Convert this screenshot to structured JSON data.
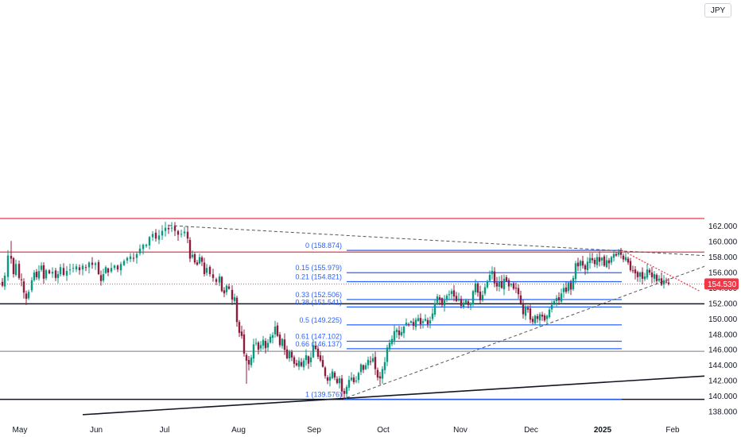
{
  "currency": "JPY",
  "colors": {
    "up": "#089981",
    "down": "#8d1c3d",
    "red_line": "#f23645",
    "fib": "#2962ff",
    "trend": "#131722",
    "price_badge": "#f23645"
  },
  "chart_data": {
    "type": "candlestick",
    "y_axis": {
      "position": "right",
      "ylim": [
        137.5,
        163.5
      ],
      "ticks": [
        "138.000",
        "140.000",
        "142.000",
        "144.000",
        "146.000",
        "148.000",
        "150.000",
        "152.000",
        "154.000",
        "156.000",
        "158.000",
        "160.000",
        "162.000"
      ]
    },
    "x_axis": {
      "labels": [
        "May",
        "Jun",
        "Jul",
        "Aug",
        "Sep",
        "Oct",
        "Nov",
        "Dec",
        "2025",
        "Feb"
      ]
    },
    "last_price": "154.530",
    "fib_levels": [
      {
        "ratio": 0,
        "label": "0 (158.874)",
        "price": 158.874
      },
      {
        "ratio": 0.15,
        "label": "0.15 (155.979)",
        "price": 155.979
      },
      {
        "ratio": 0.21,
        "label": "0.21 (154.821)",
        "price": 154.821
      },
      {
        "ratio": 0.33,
        "label": "0.33 (152.506)",
        "price": 152.506
      },
      {
        "ratio": 0.38,
        "label": "0.38 (151.541)",
        "price": 151.541
      },
      {
        "ratio": 0.5,
        "label": "0.5 (149.225)",
        "price": 149.225
      },
      {
        "ratio": 0.61,
        "label": "0.61 (147.102)",
        "price": 147.102
      },
      {
        "ratio": 0.66,
        "label": "0.66 (146.137)",
        "price": 146.137
      },
      {
        "ratio": 1,
        "label": "1 (139.576)",
        "price": 139.576
      }
    ],
    "horizontal_lines": [
      {
        "price": 163.0,
        "color": "red"
      },
      {
        "price": 158.65,
        "color": "red"
      },
      {
        "price": 151.95,
        "color": "black",
        "width": "thick"
      },
      {
        "price": 145.8,
        "color": "gray",
        "width": "thin"
      },
      {
        "price": 139.576,
        "color": "black",
        "width": "thick"
      }
    ],
    "candle_path": [
      [
        0,
        154.8
      ],
      [
        3,
        154.3
      ],
      [
        6,
        155.6
      ],
      [
        10,
        158.2
      ],
      [
        14,
        157.8
      ],
      [
        17,
        155.8
      ],
      [
        20,
        157.1
      ],
      [
        24,
        155.3
      ],
      [
        27,
        155.0
      ],
      [
        30,
        153.4
      ],
      [
        33,
        152.6
      ],
      [
        36,
        153.5
      ],
      [
        40,
        155.0
      ],
      [
        43,
        156.0
      ],
      [
        46,
        155.4
      ],
      [
        49,
        156.2
      ],
      [
        52,
        156.9
      ],
      [
        55,
        155.2
      ],
      [
        58,
        156.3
      ],
      [
        62,
        155.9
      ],
      [
        66,
        156.1
      ],
      [
        70,
        155.3
      ],
      [
        73,
        155.8
      ],
      [
        76,
        156.7
      ],
      [
        80,
        155.7
      ],
      [
        84,
        156.2
      ],
      [
        88,
        156.4
      ],
      [
        92,
        156.6
      ],
      [
        96,
        156.8
      ],
      [
        100,
        156.3
      ],
      [
        104,
        156.9
      ],
      [
        108,
        156.7
      ],
      [
        112,
        157.3
      ],
      [
        116,
        157.0
      ],
      [
        120,
        157.2
      ],
      [
        124,
        155.8
      ],
      [
        127,
        154.9
      ],
      [
        130,
        155.8
      ],
      [
        133,
        156.7
      ],
      [
        136,
        156.0
      ],
      [
        140,
        156.6
      ],
      [
        144,
        156.9
      ],
      [
        148,
        156.4
      ],
      [
        152,
        157.1
      ],
      [
        156,
        157.5
      ],
      [
        160,
        157.9
      ],
      [
        164,
        158.1
      ],
      [
        168,
        157.8
      ],
      [
        172,
        158.4
      ],
      [
        176,
        159.1
      ],
      [
        180,
        159.6
      ],
      [
        184,
        159.6
      ],
      [
        188,
        160.6
      ],
      [
        192,
        161.0
      ],
      [
        196,
        160.4
      ],
      [
        200,
        160.8
      ],
      [
        204,
        161.4
      ],
      [
        208,
        161.8
      ],
      [
        212,
        161.6
      ],
      [
        216,
        161.8
      ],
      [
        220,
        161.4
      ],
      [
        224,
        160.9
      ],
      [
        228,
        161.0
      ],
      [
        232,
        161.3
      ],
      [
        236,
        160.4
      ],
      [
        239,
        157.8
      ],
      [
        242,
        158.3
      ],
      [
        245,
        157.3
      ],
      [
        248,
        157.0
      ],
      [
        251,
        158.0
      ],
      [
        254,
        157.4
      ],
      [
        257,
        155.8
      ],
      [
        260,
        156.6
      ],
      [
        264,
        155.8
      ],
      [
        268,
        155.3
      ],
      [
        272,
        154.8
      ],
      [
        276,
        155.5
      ],
      [
        279,
        153.6
      ],
      [
        282,
        153.3
      ],
      [
        285,
        154.3
      ],
      [
        288,
        153.9
      ],
      [
        292,
        152.5
      ],
      [
        295,
        152.8
      ],
      [
        298,
        149.6
      ],
      [
        301,
        148.2
      ],
      [
        304,
        147.8
      ],
      [
        307,
        145.5
      ],
      [
        310,
        144.6
      ],
      [
        313,
        144.1
      ],
      [
        316,
        145.0
      ],
      [
        319,
        146.7
      ],
      [
        322,
        146.9
      ],
      [
        325,
        146.0
      ],
      [
        328,
        146.6
      ],
      [
        331,
        147.3
      ],
      [
        334,
        146.2
      ],
      [
        337,
        146.9
      ],
      [
        340,
        147.7
      ],
      [
        343,
        147.9
      ],
      [
        346,
        149.0
      ],
      [
        349,
        147.8
      ],
      [
        352,
        146.6
      ],
      [
        355,
        147.4
      ],
      [
        358,
        146.0
      ],
      [
        361,
        144.9
      ],
      [
        364,
        145.8
      ],
      [
        367,
        145.0
      ],
      [
        370,
        144.2
      ],
      [
        373,
        144.0
      ],
      [
        376,
        144.6
      ],
      [
        379,
        143.9
      ],
      [
        382,
        144.6
      ],
      [
        385,
        145.3
      ],
      [
        388,
        144.2
      ],
      [
        391,
        145.0
      ],
      [
        394,
        146.6
      ],
      [
        397,
        146.1
      ],
      [
        400,
        145.1
      ],
      [
        403,
        144.6
      ],
      [
        406,
        143.8
      ],
      [
        409,
        142.6
      ],
      [
        412,
        142.0
      ],
      [
        415,
        142.5
      ],
      [
        418,
        143.2
      ],
      [
        421,
        142.4
      ],
      [
        424,
        141.7
      ],
      [
        427,
        142.3
      ],
      [
        430,
        140.6
      ],
      [
        433,
        140.3
      ],
      [
        436,
        141.2
      ],
      [
        439,
        142.1
      ],
      [
        442,
        142.4
      ],
      [
        445,
        141.8
      ],
      [
        448,
        142.0
      ],
      [
        451,
        143.0
      ],
      [
        454,
        144.1
      ],
      [
        457,
        143.4
      ],
      [
        460,
        144.0
      ],
      [
        463,
        144.7
      ],
      [
        466,
        144.4
      ],
      [
        469,
        144.9
      ],
      [
        472,
        143.5
      ],
      [
        475,
        142.4
      ],
      [
        478,
        142.3
      ],
      [
        481,
        143.5
      ],
      [
        484,
        144.4
      ],
      [
        487,
        146.3
      ],
      [
        490,
        146.9
      ],
      [
        493,
        147.4
      ],
      [
        496,
        148.4
      ],
      [
        499,
        148.6
      ],
      [
        502,
        147.9
      ],
      [
        505,
        148.3
      ],
      [
        508,
        149.0
      ],
      [
        511,
        149.5
      ],
      [
        514,
        149.3
      ],
      [
        517,
        149.7
      ],
      [
        520,
        149.1
      ],
      [
        523,
        149.9
      ],
      [
        526,
        150.1
      ],
      [
        529,
        149.3
      ],
      [
        532,
        149.7
      ],
      [
        535,
        150.0
      ],
      [
        538,
        149.3
      ],
      [
        541,
        149.8
      ],
      [
        544,
        150.7
      ],
      [
        547,
        152.0
      ],
      [
        550,
        152.9
      ],
      [
        553,
        152.5
      ],
      [
        556,
        151.8
      ],
      [
        559,
        152.4
      ],
      [
        562,
        153.0
      ],
      [
        565,
        153.2
      ],
      [
        568,
        153.6
      ],
      [
        571,
        152.9
      ],
      [
        574,
        152.3
      ],
      [
        577,
        152.6
      ],
      [
        580,
        151.7
      ],
      [
        583,
        152.1
      ],
      [
        586,
        152.4
      ],
      [
        589,
        151.8
      ],
      [
        592,
        152.0
      ],
      [
        595,
        153.6
      ],
      [
        598,
        154.6
      ],
      [
        601,
        153.4
      ],
      [
        604,
        152.4
      ],
      [
        607,
        153.1
      ],
      [
        610,
        154.1
      ],
      [
        613,
        154.9
      ],
      [
        616,
        155.7
      ],
      [
        619,
        156.2
      ],
      [
        622,
        154.6
      ],
      [
        625,
        154.2
      ],
      [
        628,
        154.8
      ],
      [
        631,
        154.0
      ],
      [
        634,
        155.2
      ],
      [
        637,
        154.9
      ],
      [
        640,
        154.2
      ],
      [
        643,
        154.5
      ],
      [
        646,
        153.9
      ],
      [
        649,
        154.0
      ],
      [
        652,
        153.2
      ],
      [
        655,
        152.0
      ],
      [
        658,
        150.6
      ],
      [
        661,
        151.6
      ],
      [
        664,
        151.2
      ],
      [
        667,
        149.9
      ],
      [
        670,
        149.6
      ],
      [
        673,
        150.4
      ],
      [
        676,
        150.0
      ],
      [
        679,
        150.6
      ],
      [
        682,
        150.3
      ],
      [
        685,
        149.8
      ],
      [
        688,
        150.4
      ],
      [
        691,
        151.2
      ],
      [
        694,
        151.8
      ],
      [
        697,
        152.3
      ],
      [
        700,
        152.7
      ],
      [
        703,
        152.4
      ],
      [
        706,
        153.3
      ],
      [
        709,
        154.0
      ],
      [
        712,
        153.5
      ],
      [
        715,
        154.7
      ],
      [
        718,
        153.8
      ],
      [
        721,
        155.3
      ],
      [
        724,
        157.2
      ],
      [
        727,
        156.8
      ],
      [
        730,
        157.5
      ],
      [
        733,
        156.9
      ],
      [
        736,
        156.4
      ],
      [
        739,
        157.4
      ],
      [
        742,
        157.9
      ],
      [
        745,
        157.6
      ],
      [
        748,
        157.1
      ],
      [
        751,
        158.0
      ],
      [
        754,
        157.4
      ],
      [
        757,
        157.9
      ],
      [
        760,
        156.9
      ],
      [
        763,
        157.6
      ],
      [
        766,
        157.2
      ],
      [
        769,
        158.0
      ],
      [
        772,
        158.4
      ],
      [
        775,
        158.2
      ],
      [
        778,
        158.6
      ],
      [
        781,
        158.3
      ],
      [
        784,
        157.7
      ],
      [
        787,
        158.0
      ],
      [
        790,
        157.3
      ],
      [
        793,
        156.3
      ],
      [
        796,
        156.2
      ],
      [
        799,
        155.9
      ],
      [
        802,
        155.4
      ],
      [
        805,
        156.0
      ],
      [
        808,
        155.2
      ],
      [
        811,
        155.5
      ],
      [
        814,
        156.4
      ],
      [
        817,
        156.0
      ],
      [
        820,
        155.4
      ],
      [
        823,
        155.8
      ],
      [
        826,
        154.9
      ],
      [
        829,
        155.2
      ],
      [
        832,
        154.4
      ],
      [
        835,
        155.0
      ],
      [
        838,
        154.8
      ],
      [
        841,
        154.5
      ]
    ]
  }
}
